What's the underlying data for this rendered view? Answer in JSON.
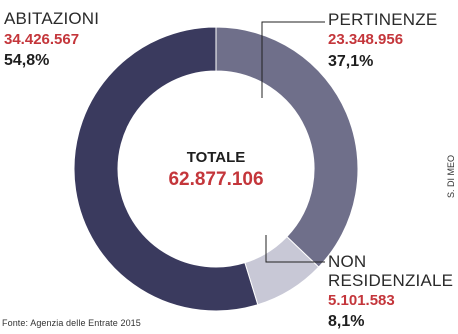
{
  "colors": {
    "abitazioni": "#3a3a5e",
    "pertinenze": "#6f6f8a",
    "non_residenziale": "#c8c8d6",
    "value_text": "#c4363b",
    "leader_line": "#222222"
  },
  "chart_data": {
    "type": "pie",
    "variant": "donut",
    "total": {
      "label": "TOTALE",
      "value": "62.877.106"
    },
    "slices": [
      {
        "label": "ABITAZIONI",
        "value": 34426567,
        "value_text": "34.426.567",
        "percent": 54.8,
        "percent_text": "54,8%"
      },
      {
        "label": "PERTINENZE",
        "value": 23348956,
        "value_text": "23.348.956",
        "percent": 37.1,
        "percent_text": "37,1%"
      },
      {
        "label": "NON RESIDENZIALE",
        "label_lines": [
          "NON",
          "RESIDENZIALE"
        ],
        "value": 5101583,
        "value_text": "5.101.583",
        "percent": 8.1,
        "percent_text": "8,1%"
      }
    ]
  },
  "source": "Fonte: Agenzia delle Entrate 2015",
  "credit": "S. DI MEO"
}
